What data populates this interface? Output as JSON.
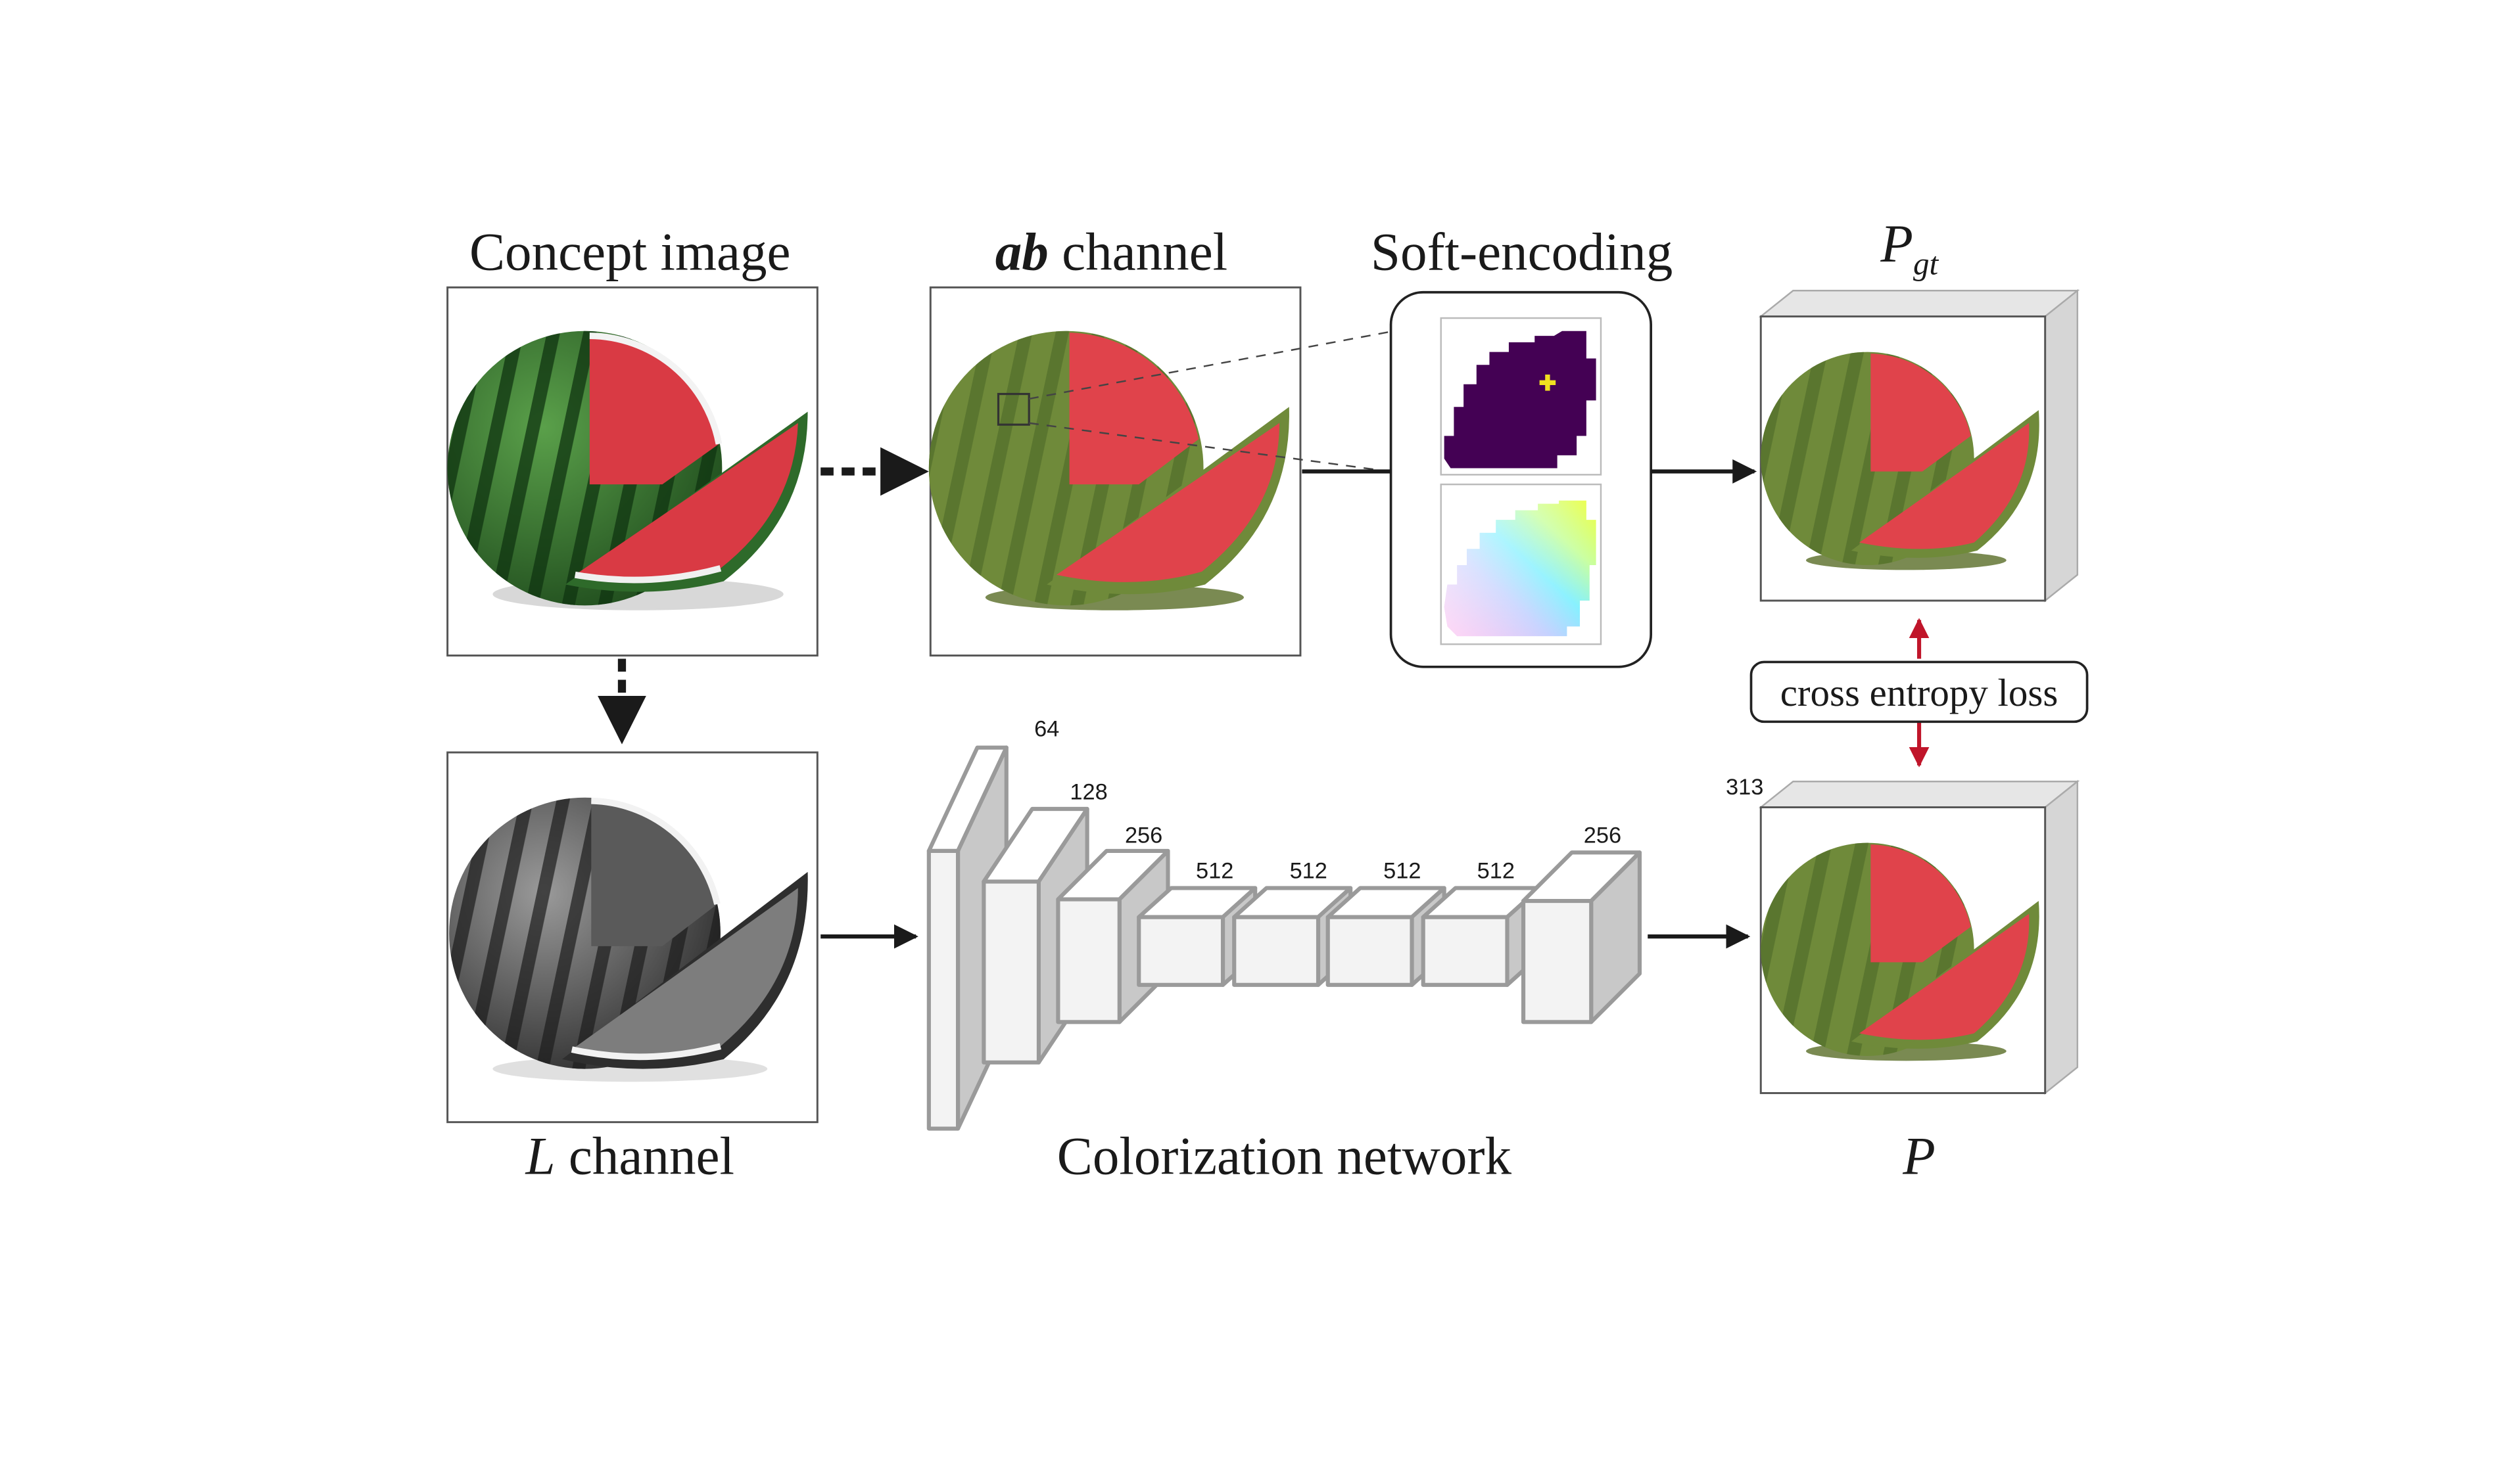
{
  "labels": {
    "concept_image": "Concept image",
    "ab_italic": "ab",
    "ab_rest": " channel",
    "soft_encoding": "Soft-encoding",
    "p_gt_main": "P",
    "p_gt_sub": "gt",
    "l_italic": "L",
    "l_rest": " channel",
    "colorization_network": "Colorization network",
    "p_pred": "P",
    "cross_entropy_loss": "cross entropy loss"
  },
  "network": {
    "channels": [
      "64",
      "128",
      "256",
      "512",
      "512",
      "512",
      "512",
      "256"
    ],
    "output_channels": "313"
  },
  "colors": {
    "arrow": "#1a1a1a",
    "loss_arrow": "#c0152a",
    "layer_fill": "#f3f3f3",
    "layer_stroke": "#9a9a9a",
    "watermelon_red": "#d93a44",
    "rind_green": "#2e6a2a",
    "ab_green": "#6f8a3a",
    "ab_red": "#e0434b",
    "gamut_purple": "#440154",
    "gamut_point": "#f0e020"
  },
  "icons": {
    "concept": "watermelon-color-icon",
    "ab": "watermelon-ab-icon",
    "gray": "watermelon-grayscale-icon",
    "gamut": "ab-gamut-icon",
    "palette": "color-palette-icon"
  }
}
